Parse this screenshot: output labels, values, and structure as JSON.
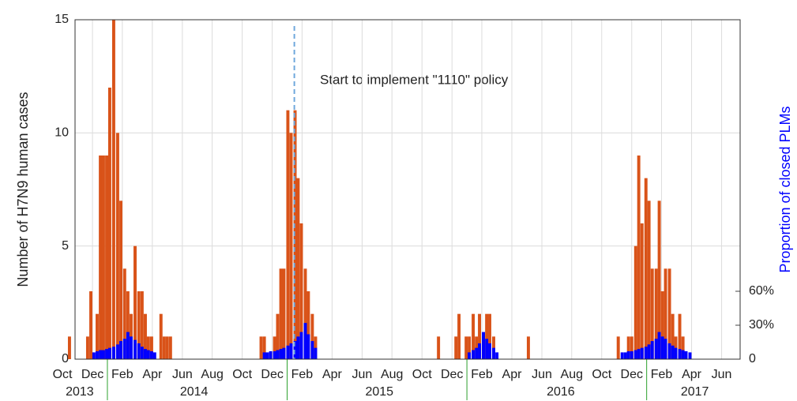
{
  "chart_data": {
    "type": "bar",
    "annotation": "Start to implement \"1110\"  policy",
    "annotation_x": 2015.04,
    "y_label": "Number of H7N9 human cases",
    "y2_label": "Proportion of closed PLMs",
    "xlim": [
      2013.82,
      2017.52
    ],
    "xticks": [
      {
        "value": 2013.75,
        "label": "Oct"
      },
      {
        "value": 2013.917,
        "label": "Dec"
      },
      {
        "value": 2014.083,
        "label": "Feb"
      },
      {
        "value": 2014.25,
        "label": "Apr"
      },
      {
        "value": 2014.417,
        "label": "Jun"
      },
      {
        "value": 2014.583,
        "label": "Aug"
      },
      {
        "value": 2014.75,
        "label": "Oct"
      },
      {
        "value": 2014.917,
        "label": "Dec"
      },
      {
        "value": 2015.083,
        "label": "Feb"
      },
      {
        "value": 2015.25,
        "label": "Apr"
      },
      {
        "value": 2015.417,
        "label": "Jun"
      },
      {
        "value": 2015.583,
        "label": "Aug"
      },
      {
        "value": 2015.75,
        "label": "Oct"
      },
      {
        "value": 2015.917,
        "label": "Dec"
      },
      {
        "value": 2016.083,
        "label": "Feb"
      },
      {
        "value": 2016.25,
        "label": "Apr"
      },
      {
        "value": 2016.417,
        "label": "Jun"
      },
      {
        "value": 2016.583,
        "label": "Aug"
      },
      {
        "value": 2016.75,
        "label": "Oct"
      },
      {
        "value": 2016.917,
        "label": "Dec"
      },
      {
        "value": 2017.083,
        "label": "Feb"
      },
      {
        "value": 2017.25,
        "label": "Apr"
      },
      {
        "value": 2017.417,
        "label": "Jun"
      }
    ],
    "year_labels": [
      {
        "value": 2013.846,
        "label": "2013"
      },
      {
        "value": 2014.482,
        "label": "2014"
      },
      {
        "value": 2015.513,
        "label": "2015"
      },
      {
        "value": 2016.522,
        "label": "2016"
      },
      {
        "value": 2017.268,
        "label": "2017"
      }
    ],
    "year_breaks": [
      2014,
      2015,
      2016,
      2017
    ],
    "ylim": [
      0,
      15
    ],
    "yticks": [
      0,
      5,
      10,
      15
    ],
    "y2lim": [
      0,
      300
    ],
    "y2ticks": [
      0,
      {
        "value": 30,
        "label": "30%"
      },
      {
        "value": 60,
        "label": "60%"
      }
    ],
    "grid": true,
    "x": [
      2013.789,
      2013.89,
      2013.908,
      2013.925,
      2013.943,
      2013.961,
      2013.978,
      2013.996,
      2014.013,
      2014.035,
      2014.057,
      2014.075,
      2014.096,
      2014.114,
      2014.132,
      2014.154,
      2014.175,
      2014.193,
      2014.211,
      2014.228,
      2014.246,
      2014.263,
      2014.298,
      2014.316,
      2014.333,
      2014.351,
      2014.855,
      2014.873,
      2014.89,
      2014.908,
      2014.93,
      2014.947,
      2014.965,
      2014.982,
      2015.004,
      2015.022,
      2015.044,
      2015.061,
      2015.079,
      2015.101,
      2015.118,
      2015.14,
      2015.158,
      2015.842,
      2015.939,
      2015.956,
      2015.996,
      2016.013,
      2016.035,
      2016.053,
      2016.07,
      2016.092,
      2016.11,
      2016.127,
      2016.149,
      2016.167,
      2016.342,
      2016.842,
      2016.864,
      2016.882,
      2016.899,
      2016.917,
      2016.939,
      2016.956,
      2016.974,
      2016.996,
      2017.013,
      2017.031,
      2017.053,
      2017.07,
      2017.088,
      2017.105,
      2017.127,
      2017.145,
      2017.162,
      2017.184,
      2017.202,
      2017.219,
      2017.241
    ],
    "series": [
      {
        "color": "#d95319",
        "values": [
          1,
          1,
          3,
          null,
          2,
          9,
          9,
          9,
          12,
          15,
          10,
          7,
          4,
          3,
          2,
          5,
          3,
          3,
          2,
          1,
          1,
          null,
          2,
          1,
          1,
          1,
          1,
          1,
          null,
          null,
          1,
          2,
          4,
          4,
          11,
          10,
          11,
          8,
          6,
          4,
          3,
          2,
          1,
          1,
          1,
          2,
          1,
          1,
          2,
          1,
          2,
          1,
          2,
          2,
          1,
          null,
          1,
          1,
          null,
          null,
          1,
          1,
          5,
          9,
          6,
          8,
          7,
          4,
          4,
          7,
          3,
          4,
          4,
          2,
          1,
          2,
          1,
          null,
          null
        ]
      },
      {
        "color": "#0000ff",
        "axis": "y2",
        "values": [
          null,
          null,
          null,
          6,
          7,
          8,
          8,
          9,
          10,
          11,
          13,
          16,
          18,
          24,
          20,
          17,
          14,
          11,
          9,
          8,
          7,
          6,
          null,
          null,
          null,
          null,
          null,
          6,
          6,
          7,
          7,
          8,
          9,
          10,
          12,
          14,
          16,
          20,
          24,
          32,
          22,
          16,
          10,
          null,
          null,
          null,
          null,
          6,
          8,
          10,
          14,
          24,
          18,
          14,
          10,
          6,
          null,
          null,
          6,
          6,
          7,
          7,
          8,
          9,
          10,
          11,
          13,
          16,
          18,
          24,
          20,
          18,
          14,
          12,
          10,
          9,
          8,
          7,
          6
        ]
      }
    ]
  }
}
